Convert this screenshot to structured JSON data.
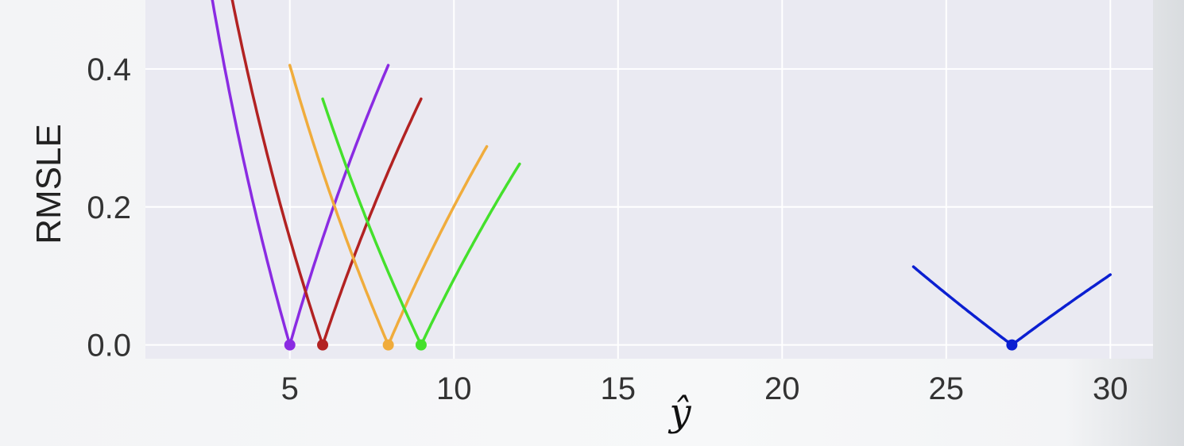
{
  "chart_data": {
    "type": "line",
    "title": "",
    "xlabel": "ŷ",
    "ylabel": "RMSLE",
    "xlim": [
      0.6,
      31.3
    ],
    "ylim": [
      -0.02,
      0.5
    ],
    "x_ticks": [
      5,
      10,
      15,
      20,
      25,
      30
    ],
    "y_ticks": [
      0.0,
      0.2,
      0.4
    ],
    "grid": true,
    "series": [
      {
        "true_value": 5,
        "x_range": [
          2,
          8
        ],
        "color": "#8a2be2"
      },
      {
        "true_value": 6,
        "x_range": [
          3,
          9
        ],
        "color": "#b22222"
      },
      {
        "true_value": 8,
        "x_range": [
          5,
          11
        ],
        "color": "#f0ac3c"
      },
      {
        "true_value": 9,
        "x_range": [
          6,
          12
        ],
        "color": "#44e02c"
      },
      {
        "true_value": 27,
        "x_range": [
          24,
          30
        ],
        "color": "#0b1fd1"
      }
    ]
  }
}
